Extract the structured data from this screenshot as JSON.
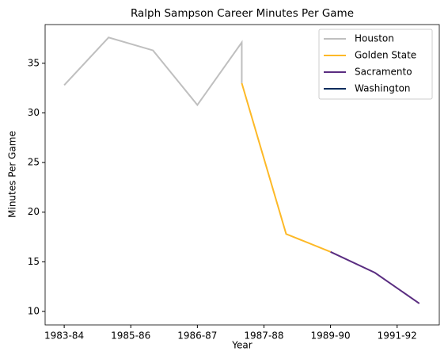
{
  "chart_data": {
    "type": "line",
    "title": "Ralph Sampson Career Minutes Per Game",
    "x_label": "Year",
    "y_label": "Minutes Per Game",
    "xlim": [
      -0.43,
      8.45
    ],
    "ylim": [
      8.64,
      38.9
    ],
    "xticks": [
      {
        "value": 0,
        "label": "1983-84"
      },
      {
        "value": 1.5,
        "label": "1985-86"
      },
      {
        "value": 3,
        "label": "1986-87"
      },
      {
        "value": 4.5,
        "label": "1987-88"
      },
      {
        "value": 6,
        "label": "1989-90"
      },
      {
        "value": 7.5,
        "label": "1991-92"
      }
    ],
    "yticks": [
      10,
      15,
      20,
      25,
      30,
      35
    ],
    "legend": "upper right",
    "series": [
      {
        "name": "Houston",
        "color": "#bfbfbf",
        "x": [
          0,
          1,
          2,
          3,
          4,
          4
        ],
        "values": [
          32.8,
          37.6,
          36.3,
          30.8,
          37.1,
          33.0
        ]
      },
      {
        "name": "Golden State",
        "color": "#fdb927",
        "x": [
          4,
          5,
          6
        ],
        "values": [
          33.0,
          17.8,
          16.0
        ]
      },
      {
        "name": "Sacramento",
        "color": "#5a2d81",
        "x": [
          6,
          7,
          8
        ],
        "values": [
          16.0,
          13.9,
          10.8
        ]
      },
      {
        "name": "Washington",
        "color": "#002b5c",
        "x": [],
        "values": []
      }
    ]
  }
}
